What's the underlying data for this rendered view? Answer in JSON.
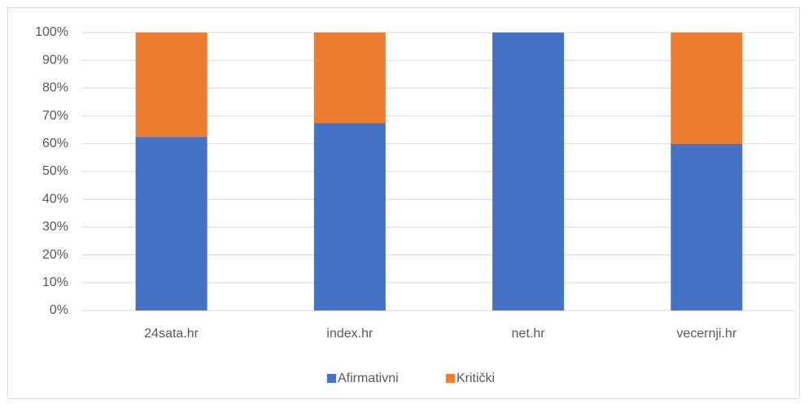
{
  "chart_data": {
    "type": "stacked_bar",
    "categories": [
      "24sata.hr",
      "index.hr",
      "net.hr",
      "vecernji.hr"
    ],
    "series": [
      {
        "name": "Afirmativni",
        "color": "#4472c4",
        "values": [
          62.5,
          67.5,
          100,
          60
        ]
      },
      {
        "name": "Kritički",
        "color": "#ed7d31",
        "values": [
          37.5,
          32.5,
          0,
          40
        ]
      }
    ],
    "ylim": [
      0,
      100
    ],
    "yticks": [
      {
        "value": 0,
        "label": "0%"
      },
      {
        "value": 10,
        "label": "10%"
      },
      {
        "value": 20,
        "label": "20%"
      },
      {
        "value": 30,
        "label": "30%"
      },
      {
        "value": 40,
        "label": "40%"
      },
      {
        "value": 50,
        "label": "50%"
      },
      {
        "value": 60,
        "label": "60%"
      },
      {
        "value": 70,
        "label": "70%"
      },
      {
        "value": 80,
        "label": "80%"
      },
      {
        "value": 90,
        "label": "90%"
      },
      {
        "value": 100,
        "label": "100%"
      }
    ],
    "grid": true,
    "legend": "bottom"
  }
}
